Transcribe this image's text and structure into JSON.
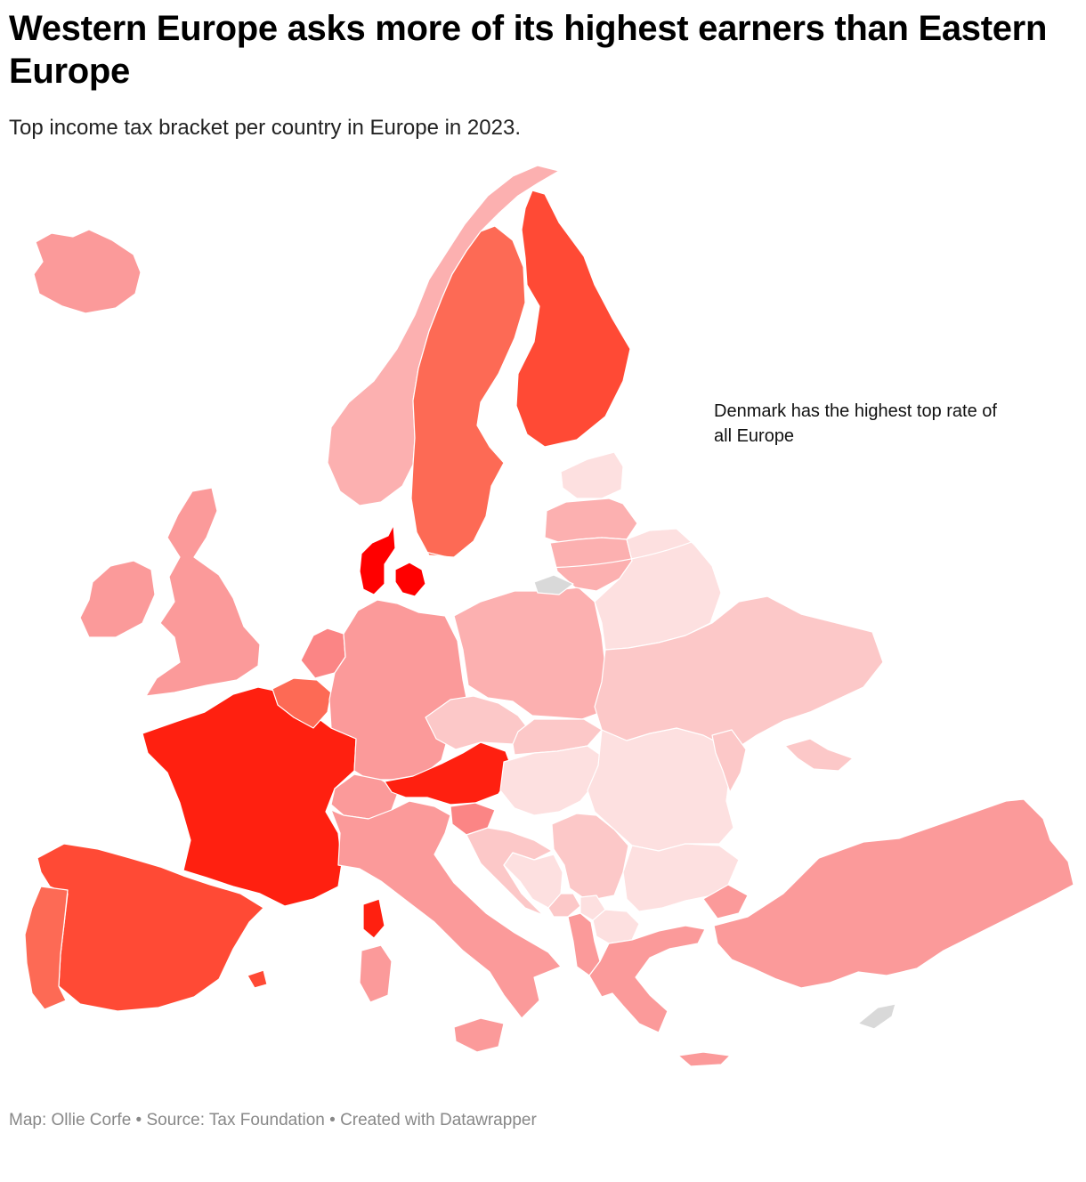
{
  "title": "Western Europe asks more of its highest earners than Eastern Europe",
  "subtitle": "Top income tax bracket per country in Europe in 2023.",
  "annotation": "Denmark has the highest top rate of all Europe",
  "footer": {
    "credit": "Map: Ollie Corfe",
    "source": "Source: Tax Foundation",
    "tool": "Created with Datawrapper",
    "separator": " • "
  },
  "colors": {
    "no_data": "#d9d9d9",
    "scale": [
      "#fde0e0",
      "#fcc8c8",
      "#fcb0b0",
      "#fb9a9a",
      "#fb8585",
      "#fd6a55",
      "#ff4a35",
      "#ff2010",
      "#ff0000"
    ]
  },
  "countries": [
    {
      "id": "iceland",
      "shade": 3
    },
    {
      "id": "norway",
      "shade": 2
    },
    {
      "id": "sweden",
      "shade": 5
    },
    {
      "id": "finland",
      "shade": 6
    },
    {
      "id": "denmark",
      "shade": 8
    },
    {
      "id": "uk",
      "shade": 3
    },
    {
      "id": "ireland",
      "shade": 3
    },
    {
      "id": "france",
      "shade": 7
    },
    {
      "id": "spain",
      "shade": 6
    },
    {
      "id": "portugal",
      "shade": 5
    },
    {
      "id": "belgium",
      "shade": 5
    },
    {
      "id": "netherlands",
      "shade": 4
    },
    {
      "id": "germany",
      "shade": 3
    },
    {
      "id": "switzerland",
      "shade": 3
    },
    {
      "id": "austria",
      "shade": 7
    },
    {
      "id": "italy",
      "shade": 3
    },
    {
      "id": "slovenia",
      "shade": 4
    },
    {
      "id": "croatia",
      "shade": 1
    },
    {
      "id": "poland",
      "shade": 2
    },
    {
      "id": "czechia",
      "shade": 1
    },
    {
      "id": "slovakia",
      "shade": 1
    },
    {
      "id": "hungary",
      "shade": 0
    },
    {
      "id": "romania",
      "shade": 0
    },
    {
      "id": "bulgaria",
      "shade": 0
    },
    {
      "id": "serbia",
      "shade": 1
    },
    {
      "id": "bosnia",
      "shade": 0
    },
    {
      "id": "montenegro",
      "shade": 1
    },
    {
      "id": "albania",
      "shade": 3
    },
    {
      "id": "north_macedonia",
      "shade": 0
    },
    {
      "id": "kosovo",
      "shade": 0
    },
    {
      "id": "greece",
      "shade": 3
    },
    {
      "id": "turkey",
      "shade": 3
    },
    {
      "id": "estonia",
      "shade": 0
    },
    {
      "id": "latvia",
      "shade": 2
    },
    {
      "id": "lithuania",
      "shade": 2
    },
    {
      "id": "belarus",
      "shade": 0
    },
    {
      "id": "ukraine",
      "shade": 1
    },
    {
      "id": "moldova",
      "shade": 1
    },
    {
      "id": "cyprus",
      "no_data": true
    },
    {
      "id": "kaliningrad",
      "no_data": true
    }
  ]
}
